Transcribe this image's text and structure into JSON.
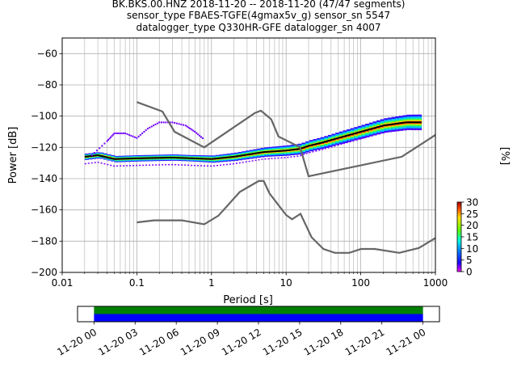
{
  "chart_data": {
    "type": "heatmap",
    "title_lines": [
      "BK.BKS.00.HNZ   2018-11-20 -- 2018-11-20  (47/47 segments)",
      "sensor_type FBAES-TGFE(4gmax5v_g) sensor_sn 5547",
      "datalogger_type Q330HR-GFE datalogger_sn 4007"
    ],
    "xlabel": "Period [s]",
    "ylabel": "Power [dB]",
    "x_scale": "log",
    "xlim": [
      0.01,
      1000
    ],
    "ylim": [
      -200,
      -50
    ],
    "x_ticks": [
      "0.01",
      "0.1",
      "1",
      "10",
      "100",
      "1000"
    ],
    "x_tick_values": [
      0.01,
      0.1,
      1,
      10,
      100,
      1000
    ],
    "y_ticks": [
      "−60",
      "−80",
      "−100",
      "−120",
      "−140",
      "−160",
      "−180",
      "−200"
    ],
    "y_tick_values": [
      -60,
      -80,
      -100,
      -120,
      -140,
      -160,
      -180,
      -200
    ],
    "grid": true,
    "noise_model_high": [
      [
        0.1,
        -91
      ],
      [
        0.22,
        -97
      ],
      [
        0.32,
        -110
      ],
      [
        0.8,
        -120
      ],
      [
        3.8,
        -98
      ],
      [
        4.6,
        -96.5
      ],
      [
        6.3,
        -102
      ],
      [
        7.9,
        -113
      ],
      [
        15.4,
        -120
      ],
      [
        20,
        -138.5
      ],
      [
        354.8,
        -126
      ],
      [
        1000,
        -112
      ]
    ],
    "noise_model_low": [
      [
        0.1,
        -168
      ],
      [
        0.17,
        -166.7
      ],
      [
        0.4,
        -166.7
      ],
      [
        0.8,
        -169.2
      ],
      [
        1.24,
        -163.7
      ],
      [
        2.4,
        -148.5
      ],
      [
        4.3,
        -141.5
      ],
      [
        5,
        -141.5
      ],
      [
        6,
        -149.5
      ],
      [
        10,
        -163.3
      ],
      [
        12,
        -166
      ],
      [
        15.6,
        -162.5
      ],
      [
        21.9,
        -177.5
      ],
      [
        31.6,
        -185
      ],
      [
        45,
        -187.5
      ],
      [
        70,
        -187.5
      ],
      [
        101,
        -185
      ],
      [
        154,
        -185
      ],
      [
        328,
        -187.5
      ],
      [
        600,
        -184.4
      ],
      [
        1000,
        -178
      ]
    ],
    "psd_mode": [
      [
        0.02,
        -126
      ],
      [
        0.03,
        -125
      ],
      [
        0.05,
        -127.5
      ],
      [
        0.1,
        -127
      ],
      [
        0.3,
        -126.5
      ],
      [
        1,
        -127.5
      ],
      [
        2,
        -126
      ],
      [
        5,
        -123
      ],
      [
        10,
        -122
      ],
      [
        15,
        -121
      ],
      [
        20,
        -119
      ],
      [
        30,
        -117
      ],
      [
        50,
        -114
      ],
      [
        100,
        -110
      ],
      [
        200,
        -106
      ],
      [
        400,
        -104
      ],
      [
        650,
        -104
      ]
    ],
    "psd_spread_db": 5,
    "outlier_bump": [
      [
        0.025,
        -125
      ],
      [
        0.04,
        -116
      ],
      [
        0.05,
        -111
      ],
      [
        0.07,
        -111
      ],
      [
        0.1,
        -114
      ],
      [
        0.14,
        -108
      ],
      [
        0.2,
        -104
      ],
      [
        0.3,
        -104
      ],
      [
        0.45,
        -106
      ],
      [
        0.6,
        -110
      ],
      [
        0.8,
        -115
      ]
    ],
    "colorbar": {
      "label": "[%]",
      "ticks": [
        "0",
        "5",
        "10",
        "15",
        "20",
        "25",
        "30"
      ],
      "tick_values": [
        0,
        5,
        10,
        15,
        20,
        25,
        30
      ],
      "range": [
        0,
        30
      ]
    },
    "coverage": {
      "ticks": [
        "11-20 00",
        "11-20 03",
        "11-20 06",
        "11-20 09",
        "11-20 12",
        "11-20 15",
        "11-20 18",
        "11-20 21",
        "11-21 00"
      ],
      "tick_hours": [
        0,
        3,
        6,
        9,
        12,
        15,
        18,
        21,
        24
      ],
      "range_hours": [
        -1.2,
        25.2
      ],
      "bars": [
        {
          "start": 0,
          "end": 24,
          "color": "#008000"
        },
        {
          "start": 0,
          "end": 24,
          "color": "#0000ff"
        }
      ]
    }
  }
}
